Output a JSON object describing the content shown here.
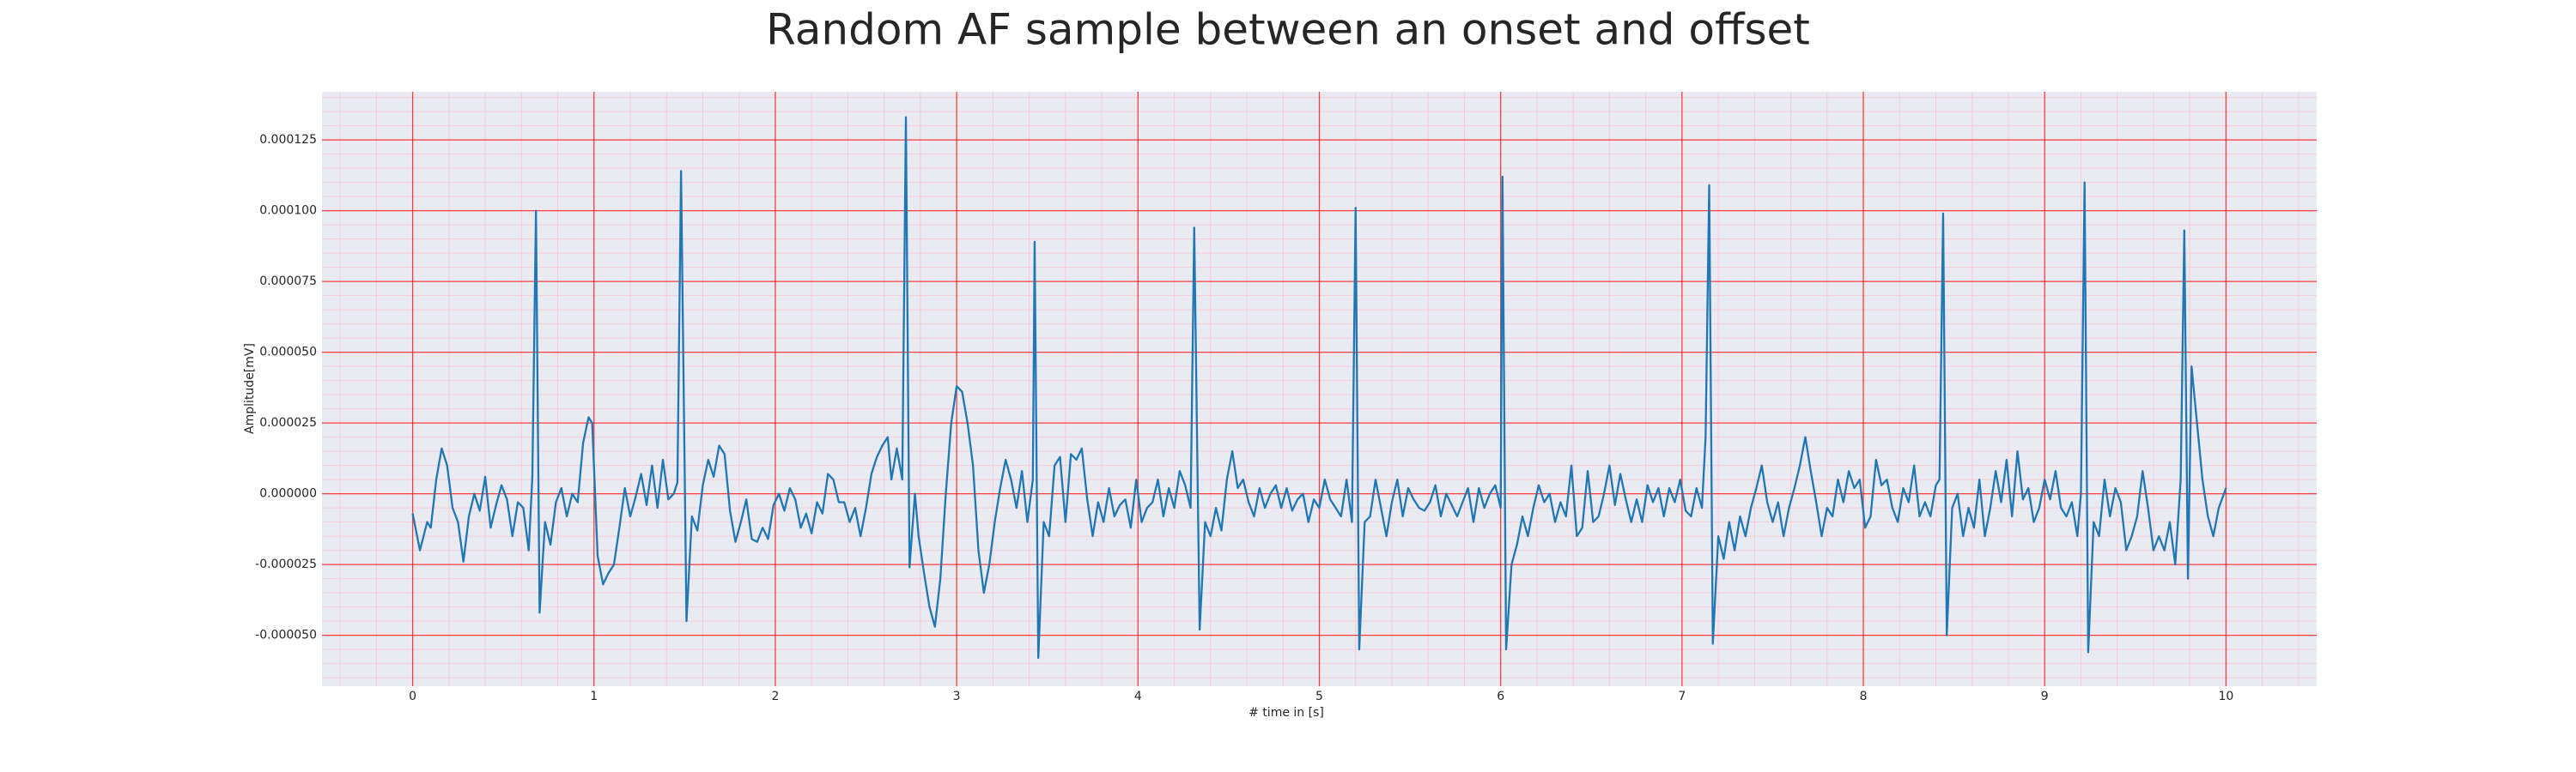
{
  "chart_data": {
    "type": "line",
    "title": "Random AF sample between an onset and offset",
    "xlabel": "# time in [s]",
    "ylabel": "Amplitude[mV]",
    "color": "#1f77b4",
    "grid": true,
    "minor_grid": true,
    "grid_color": "#ff0000",
    "minor_grid_color": "#ffb6c1",
    "background": "#eaeaf2",
    "xlim": [
      -0.5,
      10.5
    ],
    "ylim": [
      -6.8e-05,
      0.000142
    ],
    "xticks": [
      0,
      1,
      2,
      3,
      4,
      5,
      6,
      7,
      8,
      9,
      10
    ],
    "yticks": [
      {
        "value": -5e-05,
        "label": "-0.000050"
      },
      -2.5e-05,
      {
        "value": 0,
        "label": "0.000000"
      },
      2.5e-05,
      {
        "value": 5e-05,
        "label": "0.000050"
      },
      7.5e-05,
      {
        "value": 0.0001,
        "label": "0.000100"
      },
      0.000125
    ],
    "x": [
      0.0,
      0.04,
      0.08,
      0.1,
      0.13,
      0.16,
      0.19,
      0.22,
      0.25,
      0.28,
      0.31,
      0.34,
      0.37,
      0.4,
      0.43,
      0.46,
      0.49,
      0.52,
      0.55,
      0.58,
      0.61,
      0.64,
      0.66,
      0.68,
      0.7,
      0.73,
      0.76,
      0.79,
      0.82,
      0.85,
      0.88,
      0.91,
      0.94,
      0.97,
      0.99,
      1.02,
      1.05,
      1.08,
      1.11,
      1.14,
      1.17,
      1.2,
      1.23,
      1.26,
      1.29,
      1.32,
      1.35,
      1.38,
      1.41,
      1.44,
      1.46,
      1.48,
      1.51,
      1.54,
      1.57,
      1.6,
      1.63,
      1.66,
      1.69,
      1.72,
      1.75,
      1.78,
      1.81,
      1.84,
      1.87,
      1.9,
      1.93,
      1.96,
      1.99,
      2.02,
      2.05,
      2.08,
      2.11,
      2.14,
      2.17,
      2.2,
      2.23,
      2.26,
      2.29,
      2.32,
      2.35,
      2.38,
      2.41,
      2.44,
      2.47,
      2.5,
      2.53,
      2.56,
      2.59,
      2.62,
      2.64,
      2.67,
      2.7,
      2.72,
      2.74,
      2.77,
      2.79,
      2.82,
      2.85,
      2.88,
      2.91,
      2.94,
      2.97,
      3.0,
      3.03,
      3.06,
      3.09,
      3.12,
      3.15,
      3.18,
      3.21,
      3.24,
      3.27,
      3.3,
      3.33,
      3.36,
      3.39,
      3.42,
      3.43,
      3.45,
      3.48,
      3.51,
      3.54,
      3.57,
      3.6,
      3.63,
      3.66,
      3.69,
      3.72,
      3.75,
      3.78,
      3.81,
      3.84,
      3.87,
      3.9,
      3.93,
      3.96,
      3.99,
      4.02,
      4.05,
      4.08,
      4.11,
      4.14,
      4.17,
      4.2,
      4.23,
      4.26,
      4.29,
      4.31,
      4.34,
      4.37,
      4.4,
      4.43,
      4.46,
      4.49,
      4.52,
      4.55,
      4.58,
      4.61,
      4.64,
      4.67,
      4.7,
      4.73,
      4.76,
      4.79,
      4.82,
      4.85,
      4.88,
      4.91,
      4.94,
      4.97,
      5.0,
      5.03,
      5.06,
      5.09,
      5.12,
      5.15,
      5.18,
      5.2,
      5.22,
      5.25,
      5.28,
      5.31,
      5.34,
      5.37,
      5.4,
      5.43,
      5.46,
      5.49,
      5.52,
      5.55,
      5.58,
      5.61,
      5.64,
      5.67,
      5.7,
      5.73,
      5.76,
      5.79,
      5.82,
      5.85,
      5.88,
      5.91,
      5.94,
      5.97,
      6.0,
      6.01,
      6.03,
      6.06,
      6.09,
      6.12,
      6.15,
      6.18,
      6.21,
      6.24,
      6.27,
      6.3,
      6.33,
      6.36,
      6.39,
      6.42,
      6.45,
      6.48,
      6.51,
      6.54,
      6.57,
      6.6,
      6.63,
      6.66,
      6.69,
      6.72,
      6.75,
      6.78,
      6.81,
      6.84,
      6.87,
      6.9,
      6.93,
      6.96,
      6.99,
      7.02,
      7.05,
      7.08,
      7.11,
      7.13,
      7.15,
      7.17,
      7.2,
      7.23,
      7.26,
      7.29,
      7.32,
      7.35,
      7.38,
      7.41,
      7.44,
      7.47,
      7.5,
      7.53,
      7.56,
      7.59,
      7.62,
      7.65,
      7.68,
      7.71,
      7.74,
      7.77,
      7.8,
      7.83,
      7.86,
      7.89,
      7.92,
      7.95,
      7.98,
      8.01,
      8.04,
      8.07,
      8.1,
      8.13,
      8.16,
      8.19,
      8.22,
      8.25,
      8.28,
      8.31,
      8.34,
      8.37,
      8.4,
      8.42,
      8.44,
      8.46,
      8.49,
      8.52,
      8.55,
      8.58,
      8.61,
      8.64,
      8.67,
      8.7,
      8.73,
      8.76,
      8.79,
      8.82,
      8.85,
      8.88,
      8.91,
      8.94,
      8.97,
      9.0,
      9.03,
      9.06,
      9.09,
      9.12,
      9.15,
      9.18,
      9.2,
      9.22,
      9.24,
      9.27,
      9.3,
      9.33,
      9.36,
      9.39,
      9.42,
      9.45,
      9.48,
      9.51,
      9.54,
      9.57,
      9.6,
      9.63,
      9.66,
      9.69,
      9.72,
      9.75,
      9.77,
      9.79,
      9.81,
      9.84,
      9.87,
      9.9,
      9.93,
      9.96,
      10.0
    ],
    "values": [
      -7e-06,
      -2e-05,
      -1e-05,
      -1.2e-05,
      5e-06,
      1.6e-05,
      1e-05,
      -5e-06,
      -1e-05,
      -2.4e-05,
      -8e-06,
      0,
      -6e-06,
      6e-06,
      -1.2e-05,
      -4e-06,
      3e-06,
      -2e-06,
      -1.5e-05,
      -3e-06,
      -5e-06,
      -2e-05,
      6e-06,
      0.0001,
      -4.2e-05,
      -1e-05,
      -1.8e-05,
      -3e-06,
      2e-06,
      -8e-06,
      0,
      -3e-06,
      1.8e-05,
      2.7e-05,
      2.5e-05,
      -2.2e-05,
      -3.2e-05,
      -2.8e-05,
      -2.5e-05,
      -1.2e-05,
      2e-06,
      -8e-06,
      -1e-06,
      7e-06,
      -4e-06,
      1e-05,
      -5e-06,
      1.2e-05,
      -2e-06,
      0,
      4e-06,
      0.000114,
      -4.5e-05,
      -8e-06,
      -1.3e-05,
      3e-06,
      1.2e-05,
      6e-06,
      1.7e-05,
      1.4e-05,
      -6e-06,
      -1.7e-05,
      -1e-05,
      -2e-06,
      -1.6e-05,
      -1.7e-05,
      -1.2e-05,
      -1.6e-05,
      -4e-06,
      0,
      -6e-06,
      2e-06,
      -2e-06,
      -1.2e-05,
      -7e-06,
      -1.4e-05,
      -3e-06,
      -7e-06,
      7e-06,
      5e-06,
      -3e-06,
      -3e-06,
      -1e-05,
      -5e-06,
      -1.5e-05,
      -5e-06,
      7e-06,
      1.3e-05,
      1.7e-05,
      2e-05,
      5e-06,
      1.6e-05,
      5e-06,
      0.000133,
      -2.6e-05,
      0,
      -1.5e-05,
      -2.8e-05,
      -4e-05,
      -4.7e-05,
      -3e-05,
      0,
      2.5e-05,
      3.8e-05,
      3.6e-05,
      2.5e-05,
      1e-05,
      -2e-05,
      -3.5e-05,
      -2.5e-05,
      -1e-05,
      2e-06,
      1.2e-05,
      5e-06,
      -5e-06,
      8e-06,
      -1e-05,
      5e-06,
      8.9e-05,
      -5.8e-05,
      -1e-05,
      -1.5e-05,
      1e-05,
      1.3e-05,
      -1e-05,
      1.4e-05,
      1.2e-05,
      1.6e-05,
      -2e-06,
      -1.5e-05,
      -3e-06,
      -1e-05,
      2e-06,
      -8e-06,
      -4e-06,
      -2e-06,
      -1.2e-05,
      5e-06,
      -1e-05,
      -5e-06,
      -3e-06,
      5e-06,
      -8e-06,
      2e-06,
      -5e-06,
      8e-06,
      3e-06,
      -5e-06,
      9.4e-05,
      -4.8e-05,
      -1e-05,
      -1.5e-05,
      -5e-06,
      -1.3e-05,
      5e-06,
      1.5e-05,
      2e-06,
      5e-06,
      -3e-06,
      -8e-06,
      2e-06,
      -5e-06,
      0,
      3e-06,
      -5e-06,
      2e-06,
      -6e-06,
      -2e-06,
      0,
      -1e-05,
      -2e-06,
      -5e-06,
      5e-06,
      -2e-06,
      -5e-06,
      -8e-06,
      5e-06,
      -1e-05,
      0.000101,
      -5.5e-05,
      -1e-05,
      -8e-06,
      5e-06,
      -5e-06,
      -1.5e-05,
      -3e-06,
      5e-06,
      -8e-06,
      2e-06,
      -2e-06,
      -5e-06,
      -6e-06,
      -3e-06,
      3e-06,
      -8e-06,
      0,
      -4e-06,
      -8e-06,
      -3e-06,
      2e-06,
      -1e-05,
      2e-06,
      -5e-06,
      0,
      3e-06,
      -5e-06,
      0.000112,
      -5.5e-05,
      -2.5e-05,
      -1.8e-05,
      -8e-06,
      -1.5e-05,
      -5e-06,
      3e-06,
      -3e-06,
      0,
      -1e-05,
      -3e-06,
      -8e-06,
      1e-05,
      -1.5e-05,
      -1.2e-05,
      8e-06,
      -1e-05,
      -8e-06,
      0,
      1e-05,
      -4e-06,
      7e-06,
      -2e-06,
      -1e-05,
      -2e-06,
      -1e-05,
      3e-06,
      -3e-06,
      2e-06,
      -8e-06,
      2e-06,
      -3e-06,
      5e-06,
      -6e-06,
      -8e-06,
      2e-06,
      -5e-06,
      2e-05,
      0.000109,
      -5.3e-05,
      -1.5e-05,
      -2.3e-05,
      -1e-05,
      -2e-05,
      -8e-06,
      -1.5e-05,
      -5e-06,
      2e-06,
      1e-05,
      -3e-06,
      -1e-05,
      -3e-06,
      -1.5e-05,
      -5e-06,
      2e-06,
      1e-05,
      2e-05,
      8e-06,
      -3e-06,
      -1.5e-05,
      -5e-06,
      -8e-06,
      5e-06,
      -3e-06,
      8e-06,
      2e-06,
      5e-06,
      -1.2e-05,
      -8e-06,
      1.2e-05,
      3e-06,
      5e-06,
      -5e-06,
      -1e-05,
      2e-06,
      -3e-06,
      1e-05,
      -8e-06,
      -3e-06,
      -8e-06,
      3e-06,
      5e-06,
      9.9e-05,
      -5e-05,
      -5e-06,
      0,
      -1.5e-05,
      -5e-06,
      -1.2e-05,
      5e-06,
      -1.5e-05,
      -5e-06,
      8e-06,
      -3e-06,
      1.2e-05,
      -8e-06,
      1.5e-05,
      -2e-06,
      2e-06,
      -1e-05,
      -5e-06,
      5e-06,
      -2e-06,
      8e-06,
      -5e-06,
      -8e-06,
      -3e-06,
      -1.5e-05,
      0,
      0.00011,
      -5.6e-05,
      -1e-05,
      -1.5e-05,
      5e-06,
      -8e-06,
      2e-06,
      -3e-06,
      -2e-05,
      -1.5e-05,
      -8e-06,
      8e-06,
      -5e-06,
      -2e-05,
      -1.5e-05,
      -2e-05,
      -1e-05,
      -2.5e-05,
      5e-06,
      9.3e-05,
      -3e-05,
      4.5e-05,
      2.5e-05,
      5e-06,
      -8e-06,
      -1.5e-05,
      -5e-06,
      2e-06
    ]
  }
}
